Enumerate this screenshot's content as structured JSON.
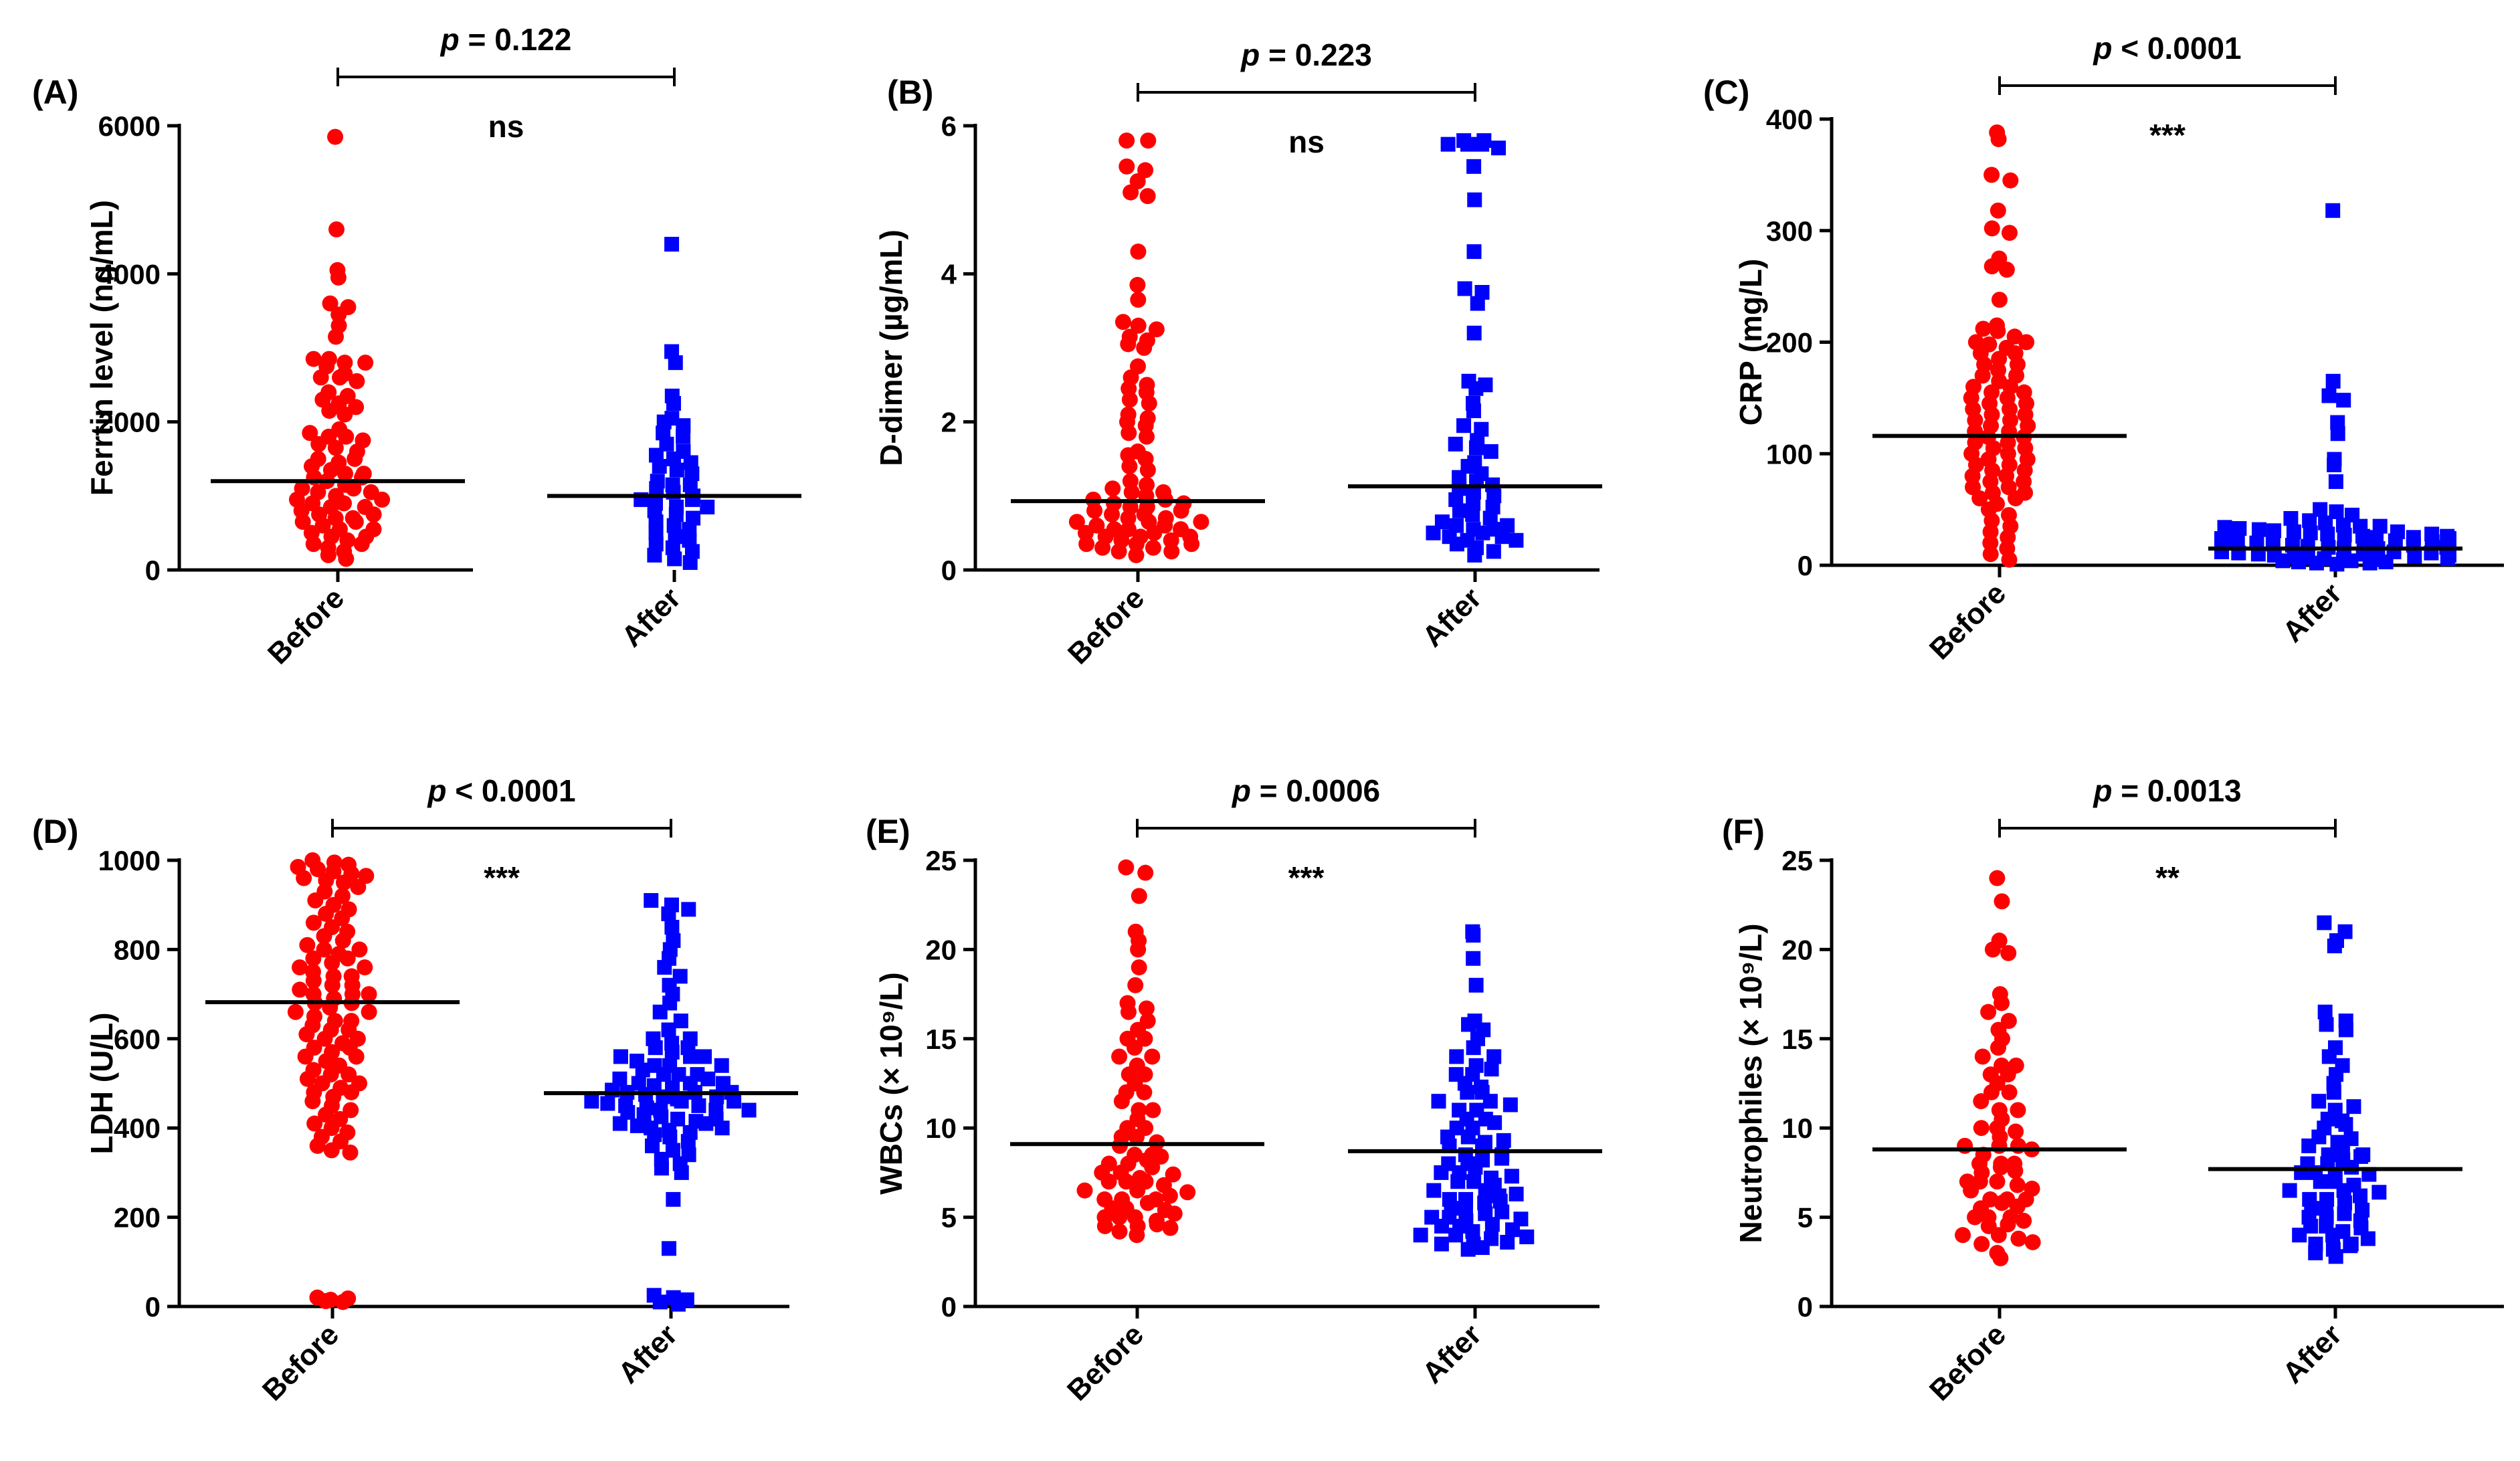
{
  "colors": {
    "before": "#ff0000",
    "after": "#0000ff",
    "axis": "#000000"
  },
  "chart_data": [
    {
      "type": "scatter",
      "panel_label": "(A)",
      "ylabel": "Ferrtin level (ng/mL)",
      "categories": [
        "Before",
        "After"
      ],
      "ylim": [
        0,
        6000
      ],
      "yticks": [
        "0",
        "2000",
        "4000",
        "6000"
      ],
      "ytick_values": [
        0,
        2000,
        4000,
        6000
      ],
      "p_prefix": "p",
      "p_text": " = 0.122",
      "significance": "ns",
      "series": [
        {
          "name": "Before",
          "median": 1200,
          "values": [
            5850,
            4600,
            4050,
            3950,
            3600,
            3550,
            3450,
            3300,
            3150,
            2850,
            2850,
            2800,
            2800,
            2750,
            2650,
            2600,
            2600,
            2550,
            2400,
            2350,
            2300,
            2250,
            2200,
            2150,
            2100,
            1900,
            1850,
            1800,
            1800,
            1750,
            1700,
            1650,
            1600,
            1500,
            1450,
            1400,
            1350,
            1300,
            1250,
            1200,
            1150,
            1100,
            1050,
            1000,
            950,
            900,
            850,
            800,
            750,
            700,
            650,
            600,
            550,
            500,
            450,
            400,
            350,
            300,
            250,
            200,
            150,
            700,
            900,
            1100,
            1300,
            1500,
            650,
            450,
            350,
            850,
            1050,
            1250,
            550,
            750,
            950
          ]
        },
        {
          "name": "After",
          "median": 1000,
          "values": [
            4400,
            2950,
            2800,
            2350,
            2250,
            2050,
            2000,
            1950,
            1850,
            1800,
            1700,
            1600,
            1550,
            1500,
            1450,
            1400,
            1350,
            1300,
            1200,
            1150,
            1100,
            1050,
            1000,
            950,
            900,
            850,
            800,
            750,
            700,
            650,
            600,
            550,
            500,
            450,
            400,
            350,
            300,
            250,
            200,
            150,
            100,
            950,
            850,
            1150
          ]
        }
      ]
    },
    {
      "type": "scatter",
      "panel_label": "(B)",
      "ylabel": "D-dimer (µg/mL)",
      "categories": [
        "Before",
        "After"
      ],
      "ylim": [
        0,
        6
      ],
      "yticks": [
        "0",
        "2",
        "4",
        "6"
      ],
      "ytick_values": [
        0,
        2,
        4,
        6
      ],
      "p_prefix": "p",
      "p_text": " = 0.223",
      "significance": "ns",
      "series": [
        {
          "name": "Before",
          "median": 0.93,
          "values": [
            5.8,
            5.8,
            5.45,
            5.4,
            5.25,
            5.1,
            5.05,
            4.3,
            3.85,
            3.65,
            3.35,
            3.3,
            3.25,
            3.15,
            3.1,
            3.05,
            3.0,
            2.75,
            2.6,
            2.5,
            2.45,
            2.4,
            2.3,
            2.25,
            2.1,
            2.05,
            2.0,
            1.95,
            1.85,
            1.8,
            1.6,
            1.55,
            1.5,
            1.4,
            1.35,
            1.2,
            1.15,
            1.1,
            1.05,
            1.0,
            0.95,
            0.9,
            0.85,
            0.8,
            0.75,
            0.7,
            0.65,
            0.6,
            0.55,
            0.5,
            0.45,
            0.4,
            0.35,
            0.3,
            0.25,
            0.2,
            0.55,
            0.45,
            0.35,
            0.65,
            0.75,
            0.85,
            0.5,
            0.4,
            0.3,
            1.05,
            0.95,
            0.6,
            0.7,
            0.8,
            0.9,
            0.25,
            0.35,
            0.45,
            0.55,
            0.65
          ]
        },
        {
          "name": "After",
          "median": 1.13,
          "values": [
            5.8,
            5.8,
            5.75,
            5.75,
            5.75,
            5.7,
            5.45,
            5.0,
            4.3,
            3.8,
            3.75,
            3.6,
            3.2,
            2.55,
            2.5,
            2.45,
            2.25,
            2.15,
            1.95,
            1.9,
            1.75,
            1.7,
            1.65,
            1.6,
            1.45,
            1.4,
            1.3,
            1.25,
            1.2,
            1.15,
            1.1,
            1.05,
            1.0,
            0.95,
            0.9,
            0.85,
            0.8,
            0.75,
            0.7,
            0.65,
            0.6,
            0.55,
            0.5,
            0.45,
            0.4,
            0.35,
            0.3,
            0.25,
            0.2,
            0.55,
            0.5,
            0.6,
            0.45,
            0.4
          ]
        }
      ]
    },
    {
      "type": "scatter",
      "panel_label": "(C)",
      "ylabel": "CRP (mg/L)",
      "categories": [
        "Before",
        "After"
      ],
      "ylim": [
        0,
        400
      ],
      "yticks": [
        "0",
        "100",
        "200",
        "300",
        "400"
      ],
      "ytick_values": [
        0,
        100,
        200,
        300,
        400
      ],
      "p_prefix": "p",
      "p_text": " < 0.0001",
      "significance": "***",
      "series": [
        {
          "name": "Before",
          "median": 116,
          "values": [
            388,
            382,
            350,
            345,
            318,
            302,
            298,
            275,
            268,
            265,
            238,
            215,
            212,
            210,
            205,
            200,
            198,
            195,
            190,
            185,
            180,
            175,
            170,
            165,
            160,
            155,
            150,
            145,
            140,
            135,
            130,
            125,
            120,
            115,
            110,
            105,
            100,
            95,
            90,
            85,
            80,
            75,
            70,
            65,
            60,
            55,
            50,
            45,
            40,
            35,
            30,
            25,
            20,
            15,
            10,
            5,
            130,
            120,
            110,
            100,
            90,
            80,
            70,
            60,
            140,
            150,
            160,
            170,
            180,
            190,
            200,
            105,
            95,
            85,
            75,
            65,
            115,
            125,
            135,
            145,
            155
          ]
        },
        {
          "name": "After",
          "median": 15,
          "values": [
            318,
            165,
            152,
            148,
            128,
            118,
            95,
            90,
            75,
            50,
            48,
            45,
            42,
            40,
            38,
            36,
            35,
            34,
            33,
            32,
            31,
            30,
            29,
            28,
            27,
            26,
            25,
            24,
            23,
            22,
            21,
            20,
            19,
            18,
            17,
            16,
            15,
            14,
            13,
            12,
            11,
            10,
            9,
            8,
            7,
            6,
            5,
            4,
            3,
            2,
            1,
            30,
            25,
            20,
            15,
            10,
            5,
            35,
            28,
            22,
            18,
            12,
            8,
            4,
            2,
            26,
            21,
            16,
            11,
            6,
            3,
            24,
            19,
            14,
            9
          ]
        }
      ]
    },
    {
      "type": "scatter",
      "panel_label": "(D)",
      "ylabel": "LDH (U/L)",
      "categories": [
        "Before",
        "After"
      ],
      "ylim": [
        0,
        1000
      ],
      "yticks": [
        "0",
        "200",
        "400",
        "600",
        "800",
        "1000"
      ],
      "ytick_values": [
        0,
        200,
        400,
        600,
        800,
        1000
      ],
      "p_prefix": "p",
      "p_text": " < 0.0001",
      "significance": "***",
      "series": [
        {
          "name": "Before",
          "median": 682,
          "values": [
            1000,
            995,
            990,
            985,
            980,
            975,
            970,
            965,
            960,
            955,
            950,
            940,
            930,
            920,
            910,
            900,
            890,
            880,
            870,
            860,
            850,
            840,
            830,
            820,
            810,
            800,
            790,
            780,
            770,
            760,
            750,
            740,
            730,
            720,
            710,
            700,
            690,
            680,
            670,
            660,
            650,
            640,
            630,
            620,
            610,
            600,
            590,
            580,
            570,
            560,
            550,
            540,
            530,
            520,
            510,
            500,
            490,
            480,
            470,
            460,
            450,
            440,
            430,
            420,
            410,
            400,
            390,
            380,
            370,
            360,
            350,
            345,
            20,
            15,
            12,
            10,
            18,
            700,
            720,
            740,
            760,
            780,
            800,
            640,
            620,
            600,
            580,
            560,
            660,
            680,
            700,
            520,
            500,
            480
          ]
        },
        {
          "name": "After",
          "median": 478,
          "values": [
            910,
            900,
            890,
            880,
            850,
            820,
            800,
            780,
            760,
            740,
            720,
            700,
            680,
            660,
            640,
            620,
            600,
            590,
            580,
            570,
            560,
            550,
            540,
            530,
            520,
            510,
            500,
            495,
            490,
            485,
            480,
            475,
            470,
            465,
            460,
            455,
            450,
            445,
            440,
            435,
            430,
            425,
            420,
            415,
            410,
            405,
            400,
            395,
            390,
            385,
            380,
            370,
            360,
            350,
            340,
            330,
            320,
            310,
            300,
            240,
            130,
            25,
            20,
            15,
            10,
            5,
            500,
            510,
            520,
            480,
            470,
            460,
            450,
            440,
            540,
            560,
            580,
            600,
            420,
            410,
            400,
            560,
            540,
            520,
            500,
            480,
            460,
            440
          ]
        }
      ]
    },
    {
      "type": "scatter",
      "panel_label": "(E)",
      "ylabel": "WBCs (× 10⁹/L)",
      "categories": [
        "Before",
        "After"
      ],
      "ylim": [
        0,
        25
      ],
      "yticks": [
        "0",
        "5",
        "10",
        "15",
        "20",
        "25"
      ],
      "ytick_values": [
        0,
        5,
        10,
        15,
        20,
        25
      ],
      "p_prefix": "p",
      "p_text": " = 0.0006",
      "significance": "***",
      "series": [
        {
          "name": "Before",
          "median": 9.1,
          "values": [
            24.6,
            24.3,
            23.0,
            21.0,
            20.5,
            20.0,
            19.0,
            18.0,
            17.0,
            16.7,
            16.5,
            16.0,
            15.5,
            15.0,
            14.5,
            14.0,
            13.5,
            13.0,
            12.5,
            12.0,
            11.5,
            11.0,
            10.5,
            10.0,
            9.5,
            9.0,
            8.5,
            8.0,
            7.5,
            7.0,
            6.5,
            6.0,
            5.5,
            5.0,
            4.5,
            4.2,
            4.0,
            6.0,
            7.0,
            8.0,
            5.0,
            6.5,
            7.5,
            4.5,
            5.5,
            9.5,
            10.0,
            8.5,
            5.0,
            6.0,
            7.0,
            4.8,
            5.2,
            6.2,
            7.2,
            8.2,
            9.2,
            4.6,
            5.8,
            6.8,
            7.8,
            11.0,
            12.0,
            13.0,
            14.0,
            15.0,
            4.4,
            5.4,
            6.4,
            7.4,
            8.4
          ]
        },
        {
          "name": "After",
          "median": 8.7,
          "values": [
            21.0,
            20.8,
            19.5,
            18.0,
            16.0,
            15.8,
            15.5,
            15.0,
            14.5,
            14.0,
            13.5,
            13.0,
            12.5,
            12.0,
            11.5,
            11.0,
            10.5,
            10.0,
            9.5,
            9.0,
            8.5,
            8.0,
            7.5,
            7.0,
            6.5,
            6.0,
            5.5,
            5.0,
            4.5,
            4.0,
            3.5,
            3.2,
            4.0,
            5.0,
            6.0,
            7.0,
            8.0,
            9.0,
            3.5,
            4.5,
            5.5,
            6.5,
            7.5,
            8.5,
            3.8,
            4.8,
            5.8,
            6.8,
            7.8,
            10.0,
            11.0,
            12.0,
            13.0,
            14.0,
            9.5,
            10.5,
            11.5,
            3.6,
            4.2,
            4.6,
            5.2,
            6.2,
            7.2,
            8.2,
            9.2,
            3.3,
            4.3,
            5.3,
            6.3,
            7.3,
            8.3,
            9.3,
            10.3,
            11.3,
            12.3,
            13.3,
            3.9,
            4.9,
            5.9
          ]
        }
      ]
    },
    {
      "type": "scatter",
      "panel_label": "(F)",
      "ylabel": "Neutrophiles (× 10⁹/L)",
      "categories": [
        "Before",
        "After"
      ],
      "ylim": [
        0,
        25
      ],
      "yticks": [
        "0",
        "5",
        "10",
        "15",
        "20",
        "25"
      ],
      "ytick_values": [
        0,
        5,
        10,
        15,
        20,
        25
      ],
      "p_prefix": "p",
      "p_text": " = 0.0013",
      "significance": "**",
      "series": [
        {
          "name": "Before",
          "median": 8.8,
          "values": [
            24.0,
            22.7,
            20.5,
            20.0,
            19.8,
            17.5,
            17.0,
            16.5,
            16.0,
            15.5,
            15.0,
            14.5,
            14.0,
            13.5,
            13.0,
            12.5,
            12.0,
            11.5,
            11.0,
            10.5,
            10.0,
            9.5,
            9.0,
            8.5,
            8.0,
            7.5,
            7.0,
            6.5,
            6.0,
            5.5,
            5.0,
            4.5,
            4.0,
            3.5,
            3.0,
            2.7,
            5.0,
            6.0,
            7.0,
            8.0,
            9.0,
            10.0,
            4.0,
            5.0,
            6.0,
            7.0,
            8.0,
            9.0,
            3.8,
            4.8,
            5.8,
            6.8,
            7.8,
            8.8,
            9.8,
            3.6,
            4.6,
            5.6,
            6.6,
            7.6,
            11.0,
            12.0,
            13.0,
            13.5
          ]
        },
        {
          "name": "After",
          "median": 7.7,
          "values": [
            21.5,
            21.0,
            20.5,
            20.2,
            16.5,
            16.0,
            15.8,
            15.5,
            14.5,
            14.0,
            13.5,
            13.0,
            12.5,
            12.0,
            11.5,
            11.0,
            10.5,
            10.0,
            9.5,
            9.0,
            8.5,
            8.0,
            7.5,
            7.0,
            6.5,
            6.0,
            5.5,
            5.0,
            4.5,
            4.0,
            3.5,
            3.0,
            2.8,
            4.0,
            5.0,
            6.0,
            7.0,
            8.0,
            9.0,
            3.5,
            4.5,
            5.5,
            6.5,
            7.5,
            8.5,
            3.2,
            4.2,
            5.2,
            6.2,
            7.2,
            8.2,
            9.2,
            10.2,
            11.2,
            3.8,
            4.8,
            5.8,
            6.8,
            7.8,
            3.4,
            4.4,
            5.4,
            6.4,
            7.4,
            8.4,
            9.4,
            10.4
          ]
        }
      ]
    }
  ]
}
